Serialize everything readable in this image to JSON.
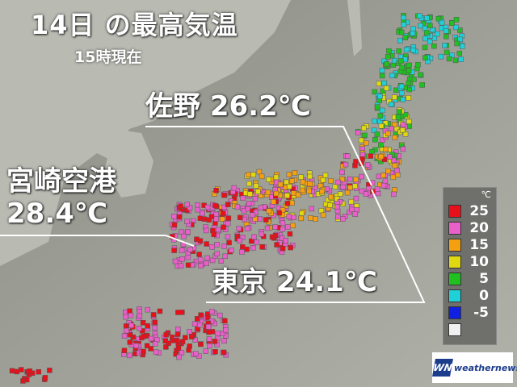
{
  "title": "14日 の最高気温",
  "subtitle": "15時現在",
  "callouts": {
    "sano": {
      "place": "佐野",
      "temp": "26.2℃"
    },
    "miyazaki": {
      "place": "宮崎空港",
      "temp": "28.4℃"
    },
    "tokyo": {
      "place": "東京",
      "temp": "24.1℃"
    }
  },
  "legend": {
    "unit": "℃",
    "items": [
      {
        "label": "25",
        "color": "#e8101a"
      },
      {
        "label": "20",
        "color": "#e860c8"
      },
      {
        "label": "15",
        "color": "#f5a010"
      },
      {
        "label": "10",
        "color": "#e0d810"
      },
      {
        "label": "5",
        "color": "#20c020"
      },
      {
        "label": "0",
        "color": "#20d0d8"
      },
      {
        "label": "-5",
        "color": "#1020e0"
      },
      {
        "label": "",
        "color": "#f0f0f0"
      }
    ]
  },
  "brand": {
    "name": "weathernews",
    "mark": "WN"
  }
}
